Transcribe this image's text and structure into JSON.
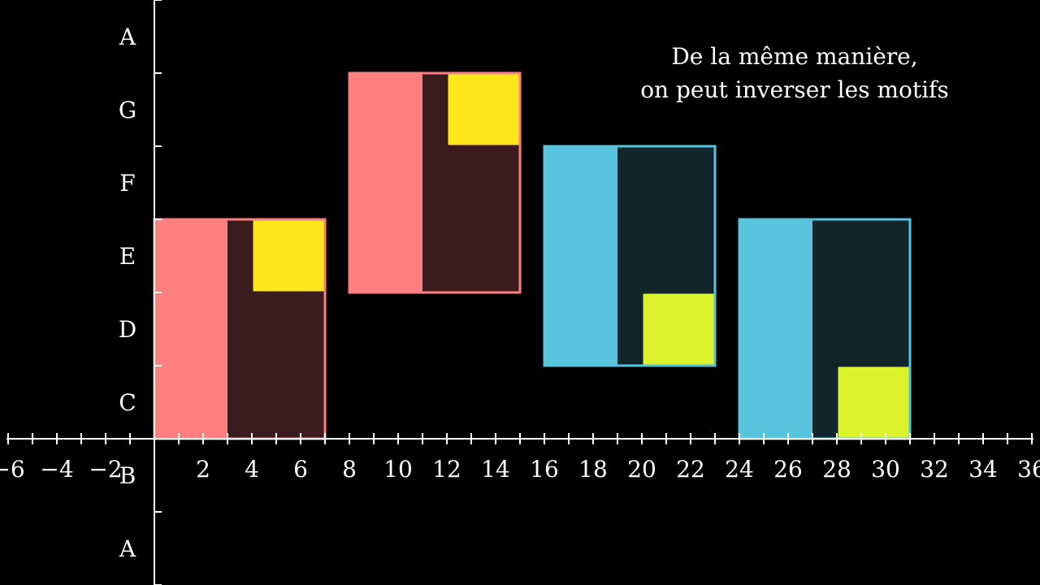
{
  "scene": {
    "background": "#000000",
    "axis_color": "#ffffff"
  },
  "annotation": {
    "line1": "De la même manière,",
    "line2": "on peut inverser les motifs"
  },
  "colors": {
    "red_bar": "#FF7F7F",
    "red_fill": "#3A1C1E",
    "red_outline": "#FF7F7F",
    "yellow": "#FFE51C",
    "blue_bar": "#58C4DD",
    "blue_fill": "#12252B",
    "blue_outline": "#58C4DD",
    "lime": "#DCF22A"
  },
  "chart_data": {
    "type": "diagram",
    "x_axis": {
      "range": [
        -6,
        36
      ],
      "tick_step": 1,
      "labels": [
        "−6",
        "−4",
        "−2",
        "2",
        "4",
        "6",
        "8",
        "10",
        "12",
        "14",
        "16",
        "18",
        "20",
        "22",
        "24",
        "26",
        "28",
        "30",
        "32",
        "34",
        "36"
      ],
      "label_values": [
        -6,
        -4,
        -2,
        2,
        4,
        6,
        8,
        10,
        12,
        14,
        16,
        18,
        20,
        22,
        24,
        26,
        28,
        30,
        32,
        34,
        36
      ]
    },
    "y_axis": {
      "range": [
        -2,
        6
      ],
      "labels": [
        "A",
        "B",
        "C",
        "D",
        "E",
        "F",
        "G",
        "A"
      ],
      "label_values": [
        -1.5,
        -0.5,
        0.5,
        1.5,
        2.5,
        3.5,
        4.5,
        5.5
      ]
    },
    "blocks": [
      {
        "name": "block-1",
        "theme": "red",
        "x": [
          0,
          7
        ],
        "y": [
          0,
          3
        ],
        "bar_x": [
          0,
          3
        ],
        "square_x": [
          4,
          7
        ],
        "square_y": [
          2,
          3
        ]
      },
      {
        "name": "block-2",
        "theme": "red",
        "x": [
          8,
          15
        ],
        "y": [
          2,
          5
        ],
        "bar_x": [
          8,
          11
        ],
        "square_x": [
          12,
          15
        ],
        "square_y": [
          4,
          5
        ]
      },
      {
        "name": "block-3",
        "theme": "blue",
        "x": [
          16,
          23
        ],
        "y": [
          1,
          4
        ],
        "bar_x": [
          16,
          19
        ],
        "square_x": [
          20,
          23
        ],
        "square_y": [
          1,
          2
        ]
      },
      {
        "name": "block-4",
        "theme": "blue",
        "x": [
          24,
          31
        ],
        "y": [
          0,
          3
        ],
        "bar_x": [
          24,
          27
        ],
        "square_x": [
          28,
          31
        ],
        "square_y": [
          0,
          1
        ]
      }
    ]
  }
}
